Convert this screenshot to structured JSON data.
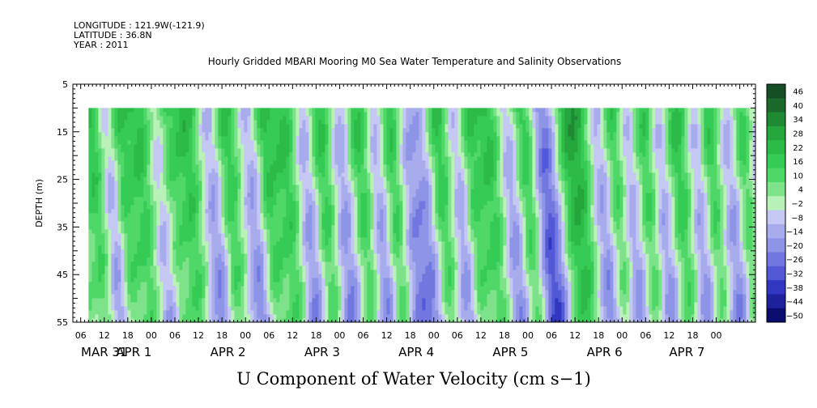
{
  "header": {
    "longitude": "LONGITUDE : 121.9W(-121.9)",
    "latitude": "LATITUDE : 36.8N",
    "year": "YEAR : 2011"
  },
  "chart_data": {
    "type": "heatmap",
    "title": "Hourly Gridded MBARI Mooring M0 Sea Water Temperature and Salinity Observations",
    "xlabel": "U Component of Water Velocity (cm s−1)",
    "ylabel": "DEPTH (m)",
    "y_ticks": [
      5,
      15,
      25,
      35,
      45,
      55
    ],
    "ylim": [
      5,
      55
    ],
    "y_reversed": true,
    "x_hour_labels": [
      "06",
      "12",
      "18",
      "00",
      "06",
      "12",
      "18",
      "00",
      "06",
      "12",
      "18",
      "00",
      "06",
      "12",
      "18",
      "00",
      "06",
      "12",
      "18",
      "00",
      "06",
      "12",
      "18",
      "00",
      "06",
      "12",
      "18",
      "00"
    ],
    "x_day_labels": [
      "MAR 31",
      "APR  1",
      "APR  2",
      "APR  3",
      "APR  4",
      "APR  5",
      "APR  6",
      "APR  7"
    ],
    "data_depth_range": [
      10,
      55
    ],
    "data_start_hour": 8,
    "colorbar": {
      "labels": [
        "46",
        "40",
        "34",
        "28",
        "22",
        "16",
        "10",
        "4",
        "−2",
        "−8",
        "−14",
        "−20",
        "−26",
        "−32",
        "−38",
        "−44",
        "−50"
      ],
      "levels_top_to_bottom": [
        "#154d25",
        "#1b6a2c",
        "#1f8a33",
        "#25a63d",
        "#2dbb48",
        "#36cb55",
        "#4fd867",
        "#7ee28a",
        "#b8f2b9",
        "#c5c8f3",
        "#a8acec",
        "#8f95e6",
        "#7278df",
        "#5258d6",
        "#3137c0",
        "#1d219c",
        "#0a0c6e"
      ]
    },
    "stripes": [
      [
        2,
        1
      ],
      [
        8,
        1
      ],
      [
        12,
        -1
      ],
      [
        15,
        1
      ],
      [
        20,
        1
      ],
      [
        25,
        -1
      ],
      [
        27,
        1
      ],
      [
        32,
        1
      ],
      [
        38,
        -1
      ],
      [
        42,
        1
      ],
      [
        48,
        -1
      ],
      [
        52,
        1
      ],
      [
        57,
        1
      ],
      [
        62,
        -1
      ],
      [
        66,
        1
      ],
      [
        71,
        -1
      ],
      [
        76,
        1
      ],
      [
        80,
        -1
      ],
      [
        84,
        1
      ],
      [
        88,
        -1
      ],
      [
        92,
        -1
      ],
      [
        96,
        1
      ],
      [
        101,
        -1
      ],
      [
        104,
        1
      ],
      [
        109,
        1
      ],
      [
        114,
        -1
      ],
      [
        118,
        1
      ],
      [
        122,
        -1
      ],
      [
        124,
        -1
      ],
      [
        129,
        1
      ],
      [
        132,
        1
      ],
      [
        137,
        -1
      ],
      [
        141,
        1
      ],
      [
        144,
        -1
      ],
      [
        149,
        1
      ],
      [
        152,
        -1
      ],
      [
        157,
        1
      ],
      [
        162,
        -1
      ],
      [
        165,
        1
      ],
      [
        170,
        -1
      ],
      [
        174,
        1
      ],
      [
        177,
        -1
      ]
    ]
  }
}
